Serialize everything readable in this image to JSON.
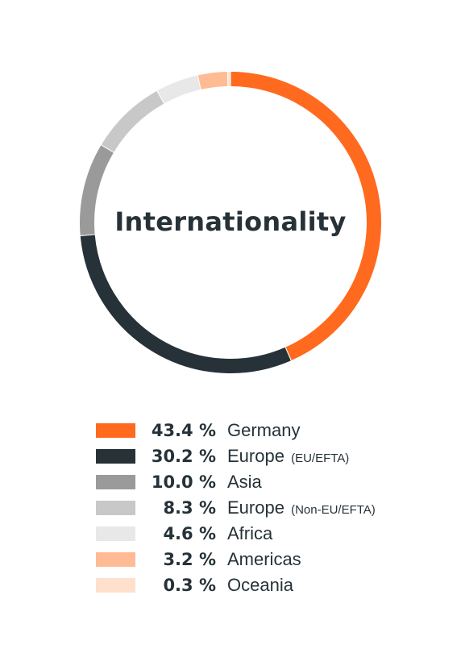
{
  "chart_data": {
    "type": "pie",
    "title": "Internationality",
    "categories": [
      "Germany",
      "Europe",
      "Asia",
      "Europe",
      "Africa",
      "Americas",
      "Oceania"
    ],
    "category_notes": [
      "",
      "(EU/EFTA)",
      "",
      "(Non-EU/EFTA)",
      "",
      "",
      ""
    ],
    "values": [
      43.4,
      30.2,
      10.0,
      8.3,
      4.6,
      3.2,
      0.3
    ],
    "value_labels": [
      "43.4 %",
      "30.2 %",
      "10.0 %",
      "8.3 %",
      "4.6 %",
      "3.2 %",
      "0.3 %"
    ],
    "colors": [
      "#ff6a1f",
      "#263238",
      "#9a9a9a",
      "#c8c8c8",
      "#e8e8e8",
      "#ffbb94",
      "#ffe0cc"
    ],
    "legend_placement": "bottom",
    "donut": true
  }
}
